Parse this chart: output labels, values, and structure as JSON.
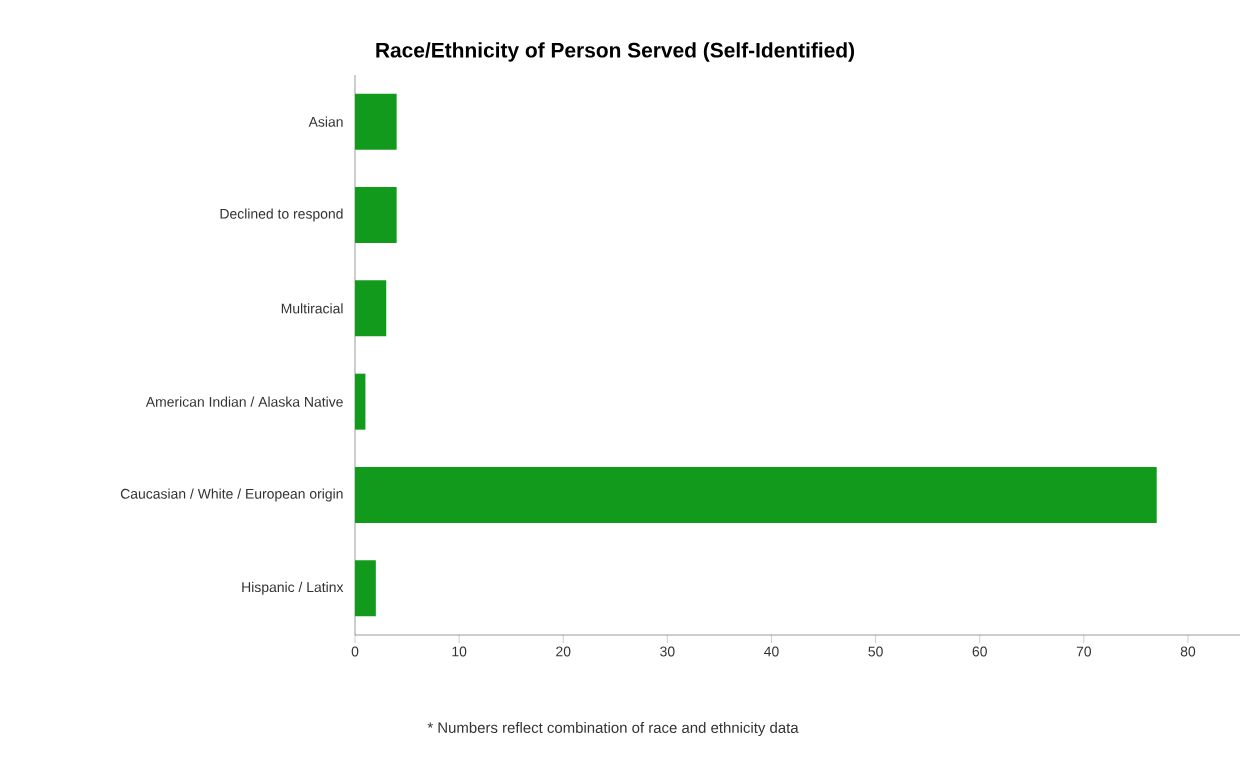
{
  "chart_data": {
    "type": "bar",
    "orientation": "horizontal",
    "title": "Race/Ethnicity of Person Served (Self-Identified)",
    "categories": [
      "Asian",
      "Declined to respond",
      "Multiracial",
      "American Indian / Alaska Native",
      "Caucasian / White / European origin",
      "Hispanic / Latinx"
    ],
    "values": [
      4,
      4,
      3,
      1,
      77,
      2
    ],
    "color": "#129a1d",
    "xlim": [
      0,
      85
    ],
    "xticks": [
      0,
      10,
      20,
      30,
      40,
      50,
      60,
      70,
      80
    ],
    "annotations": [
      "* Numbers reflect combination of race and ethnicity data"
    ]
  }
}
